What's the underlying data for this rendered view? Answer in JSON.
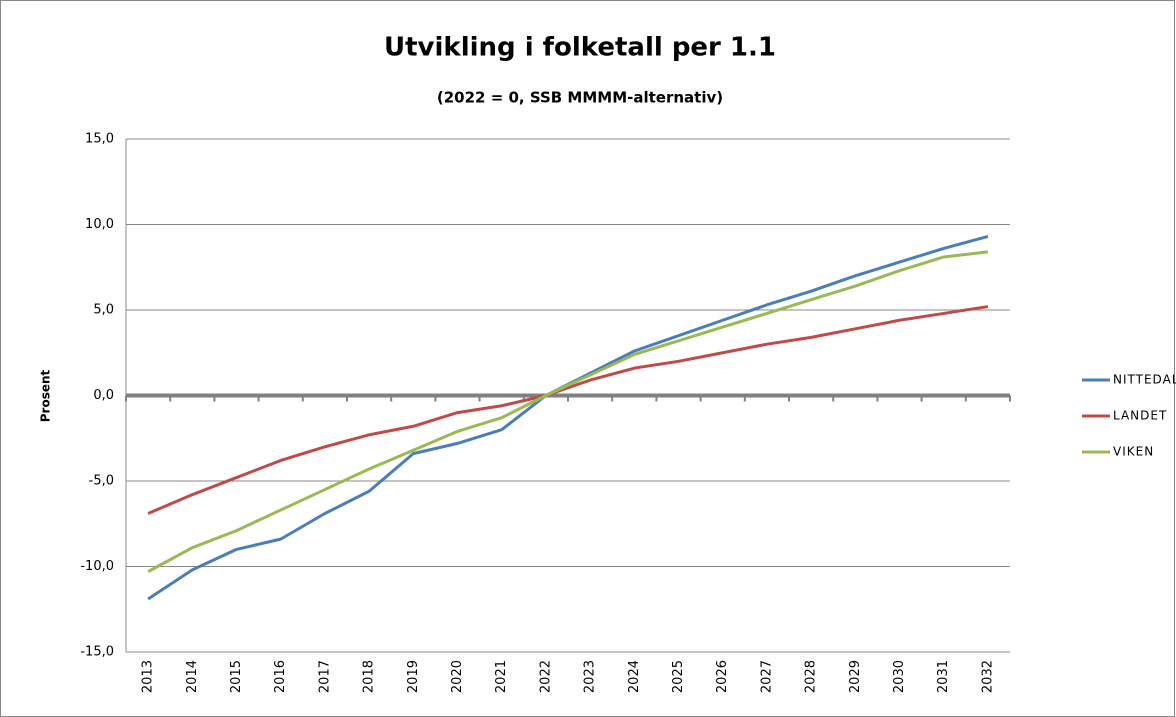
{
  "chart_data": {
    "type": "line",
    "title": "Utvikling i folketall per 1.1",
    "subtitle": "(2022 = 0, SSB MMMM-alternativ)",
    "y_label": "Prosent",
    "categories": [
      "2013",
      "2014",
      "2015",
      "2016",
      "2017",
      "2018",
      "2019",
      "2020",
      "2021",
      "2022",
      "2023",
      "2024",
      "2025",
      "2026",
      "2027",
      "2028",
      "2029",
      "2030",
      "2031",
      "2032"
    ],
    "series": [
      {
        "name": "NITTEDAL",
        "color": "#4a7ebb",
        "values": [
          -11.9,
          -10.2,
          -9.0,
          -8.4,
          -6.9,
          -5.6,
          -3.4,
          -2.8,
          -2.0,
          0,
          1.3,
          2.6,
          3.5,
          4.4,
          5.3,
          6.1,
          7.0,
          7.8,
          8.6,
          9.3
        ]
      },
      {
        "name": "LANDET",
        "color": "#be4b48",
        "values": [
          -6.9,
          -5.8,
          -4.8,
          -3.8,
          -3.0,
          -2.3,
          -1.8,
          -1.0,
          -0.6,
          0,
          0.9,
          1.6,
          2.0,
          2.5,
          3.0,
          3.4,
          3.9,
          4.4,
          4.8,
          5.2
        ]
      },
      {
        "name": "VIKEN",
        "color": "#98b954",
        "values": [
          -10.3,
          -8.9,
          -7.9,
          -6.7,
          -5.5,
          -4.3,
          -3.2,
          -2.1,
          -1.3,
          0,
          1.2,
          2.4,
          3.2,
          4.0,
          4.8,
          5.6,
          6.4,
          7.3,
          8.1,
          8.4
        ]
      }
    ],
    "ylim": [
      -15,
      15
    ],
    "yticks": [
      {
        "value": -15,
        "label": "-15,0"
      },
      {
        "value": -10,
        "label": "-10,0"
      },
      {
        "value": -5,
        "label": "-5,0"
      },
      {
        "value": 0,
        "label": "0,0"
      },
      {
        "value": 5,
        "label": "5,0"
      },
      {
        "value": 10,
        "label": "10,0"
      },
      {
        "value": 15,
        "label": "15,0"
      }
    ],
    "grid": true,
    "legend": "right"
  }
}
